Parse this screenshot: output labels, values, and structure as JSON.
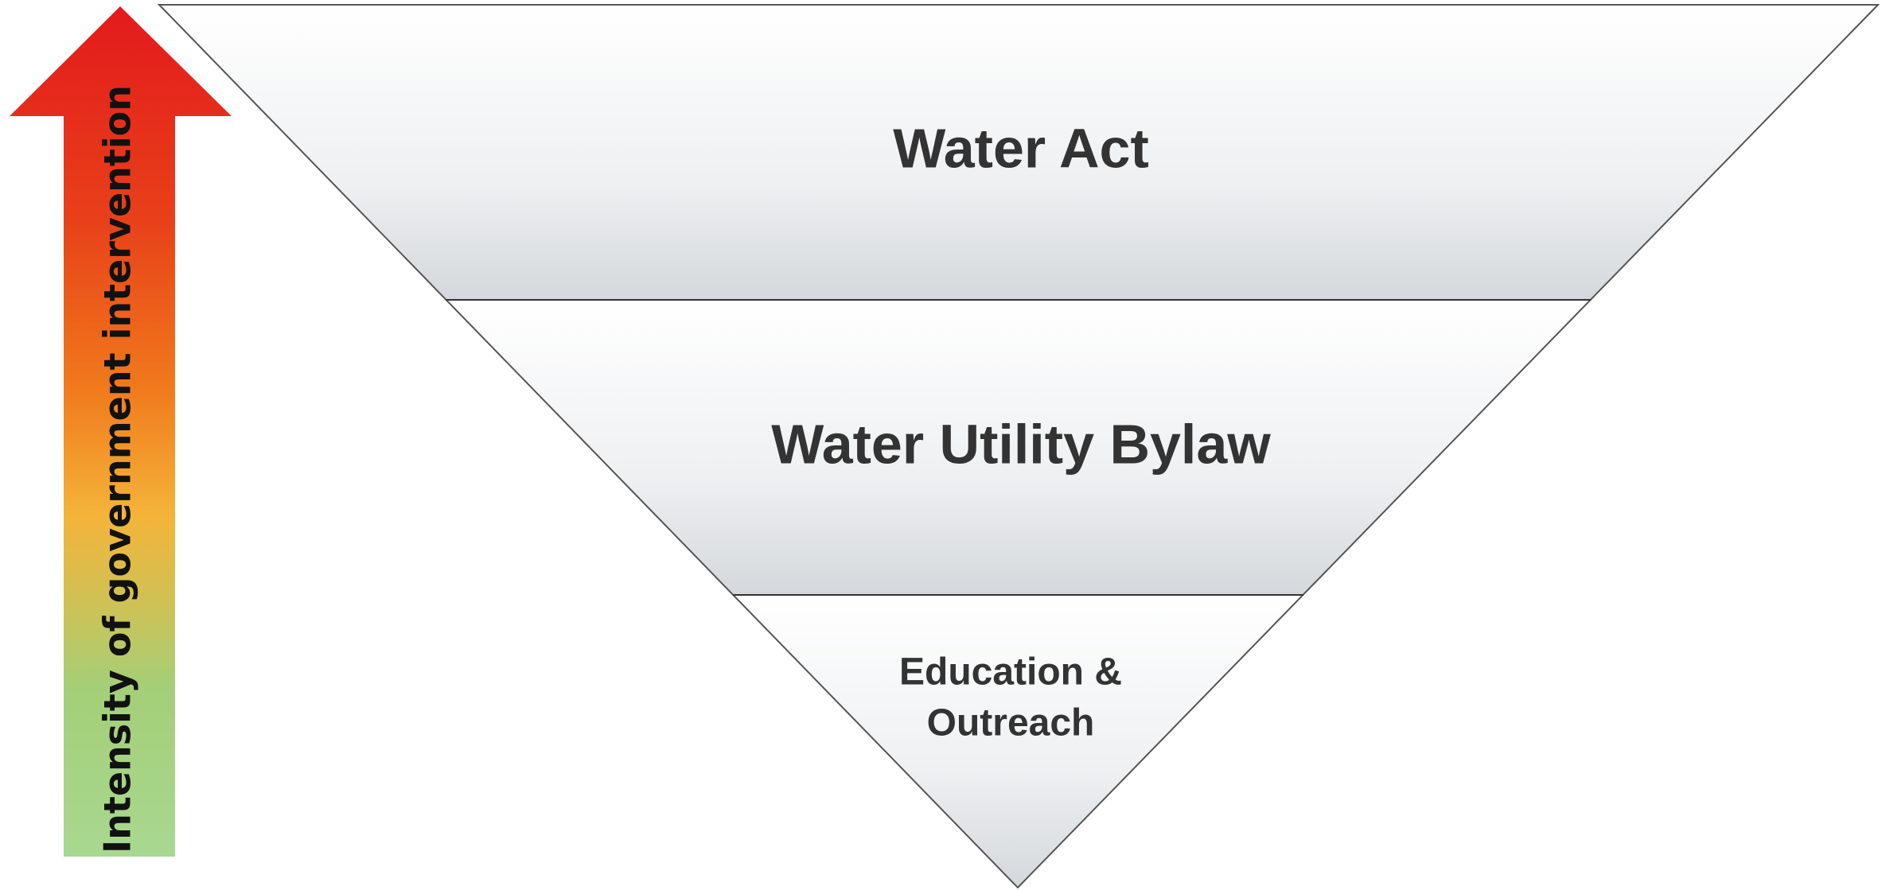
{
  "axis_label": "Intensity of government intervention",
  "tiers": [
    {
      "lines": [
        "Water Act"
      ]
    },
    {
      "lines": [
        "Water Utility Bylaw"
      ]
    },
    {
      "lines": [
        "Education &",
        "Outreach"
      ]
    }
  ]
}
